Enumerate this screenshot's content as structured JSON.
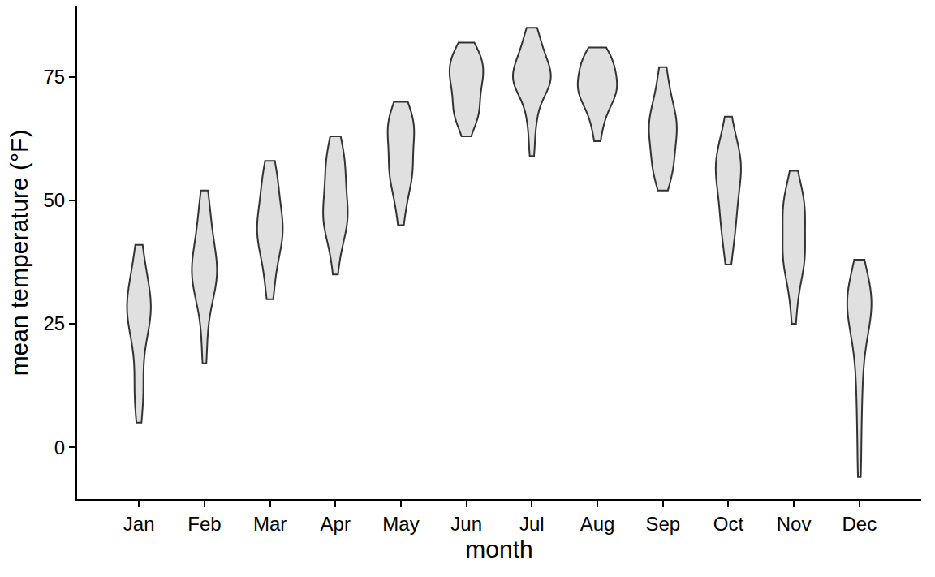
{
  "chart_data": {
    "type": "violin",
    "x_label": "month",
    "y_label": "mean temperature (°F)",
    "categories": [
      "Jan",
      "Feb",
      "Mar",
      "Apr",
      "May",
      "Jun",
      "Jul",
      "Aug",
      "Sep",
      "Oct",
      "Nov",
      "Dec"
    ],
    "values": [
      [
        5,
        8,
        10,
        11,
        12,
        14,
        18,
        20,
        21,
        23,
        24,
        25,
        26,
        26,
        27,
        27,
        28,
        28,
        29,
        29,
        30,
        30,
        31,
        32,
        33,
        34,
        35,
        36,
        38,
        40,
        41
      ],
      [
        17,
        20,
        24,
        27,
        29,
        30,
        31,
        32,
        33,
        34,
        34,
        35,
        35,
        36,
        36,
        37,
        37,
        38,
        39,
        40,
        41,
        42,
        43,
        44,
        46,
        47,
        49,
        51,
        52
      ],
      [
        30,
        31,
        33,
        35,
        37,
        38,
        39,
        40,
        41,
        42,
        42,
        43,
        43,
        44,
        44,
        45,
        45,
        46,
        46,
        47,
        48,
        49,
        50,
        51,
        52,
        53,
        54,
        55,
        56,
        57,
        58
      ],
      [
        35,
        38,
        40,
        42,
        43,
        44,
        45,
        45,
        46,
        46,
        47,
        47,
        48,
        48,
        49,
        50,
        51,
        52,
        53,
        54,
        55,
        56,
        56,
        57,
        58,
        59,
        60,
        61,
        62,
        63
      ],
      [
        45,
        47,
        49,
        51,
        52,
        53,
        54,
        55,
        55,
        56,
        56,
        57,
        57,
        58,
        59,
        60,
        61,
        62,
        63,
        63,
        64,
        64,
        65,
        65,
        66,
        66,
        67,
        67,
        68,
        69,
        70
      ],
      [
        63,
        65,
        66,
        67,
        67,
        68,
        68,
        69,
        69,
        70,
        71,
        72,
        73,
        73,
        74,
        74,
        75,
        75,
        76,
        76,
        77,
        77,
        78,
        78,
        79,
        79,
        80,
        80,
        81,
        82
      ],
      [
        59,
        62,
        65,
        67,
        68,
        70,
        71,
        72,
        72,
        73,
        73,
        74,
        74,
        74,
        75,
        75,
        75,
        76,
        76,
        77,
        77,
        78,
        78,
        79,
        79,
        80,
        81,
        82,
        83,
        84,
        85
      ],
      [
        62,
        64,
        66,
        67,
        68,
        69,
        70,
        70,
        71,
        71,
        72,
        72,
        72,
        73,
        73,
        73,
        74,
        74,
        75,
        75,
        76,
        76,
        77,
        77,
        78,
        78,
        79,
        79,
        80,
        80,
        81
      ],
      [
        52,
        54,
        55,
        56,
        56,
        57,
        57,
        58,
        59,
        60,
        61,
        62,
        63,
        63,
        64,
        64,
        65,
        65,
        66,
        66,
        67,
        67,
        68,
        69,
        70,
        71,
        72,
        74,
        76,
        77
      ],
      [
        37,
        39,
        41,
        43,
        44,
        45,
        46,
        47,
        48,
        49,
        50,
        51,
        52,
        53,
        54,
        55,
        55,
        56,
        56,
        57,
        57,
        58,
        58,
        59,
        59,
        60,
        61,
        62,
        63,
        65,
        67
      ],
      [
        25,
        28,
        31,
        33,
        35,
        36,
        37,
        37,
        38,
        38,
        39,
        39,
        40,
        41,
        42,
        43,
        44,
        45,
        46,
        47,
        48,
        48,
        49,
        49,
        50,
        50,
        51,
        52,
        54,
        56
      ],
      [
        -6,
        -2,
        3,
        7,
        10,
        13,
        16,
        18,
        20,
        22,
        23,
        24,
        25,
        26,
        27,
        27,
        28,
        28,
        29,
        29,
        30,
        30,
        31,
        31,
        32,
        32,
        33,
        34,
        35,
        36,
        38
      ]
    ],
    "color": "#e0e0e0",
    "ylim": [
      -10.5,
      89.3
    ],
    "yticks": [
      0,
      25,
      50,
      75
    ],
    "grid": false
  }
}
